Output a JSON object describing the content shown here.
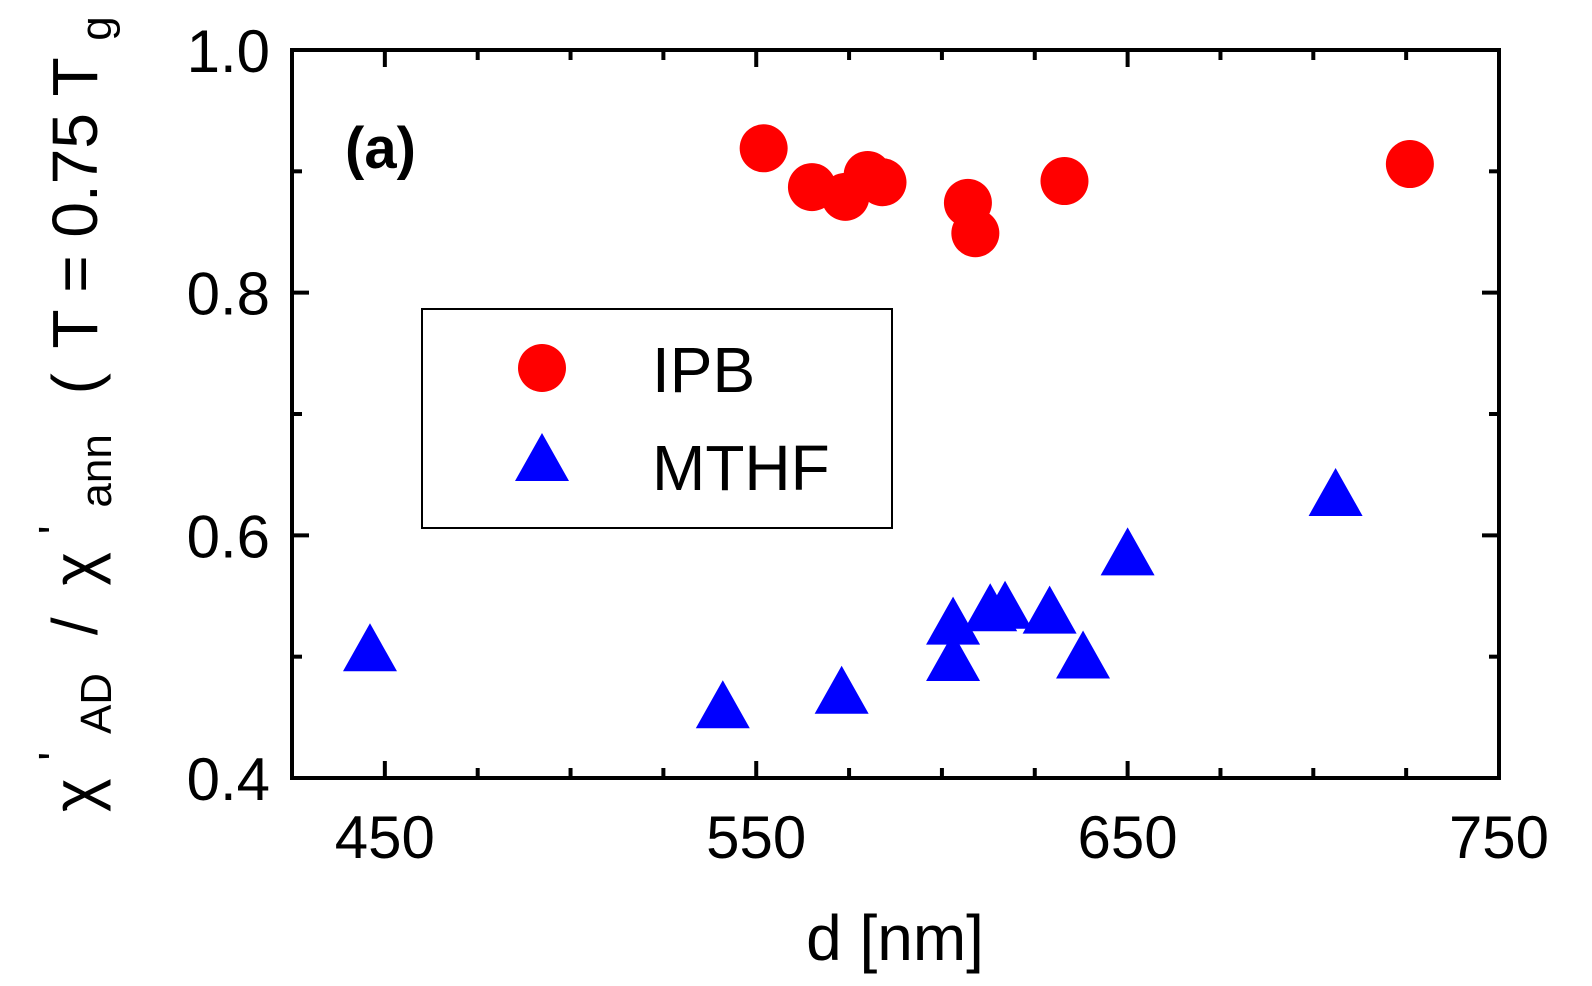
{
  "chart_data": {
    "type": "scatter",
    "panel_label": "(a)",
    "xlabel": "d [nm]",
    "ylabel": {
      "chi": "χ",
      "prime": "'",
      "sub_ad": "AD",
      "slash": "/",
      "sub_ann": "ann",
      "paren_open": "(",
      "t_eq": "T = 0.75 T",
      "sub_g": "g",
      "paren_close": ")"
    },
    "xlim": [
      425,
      750
    ],
    "ylim": [
      0.4,
      1.0
    ],
    "x_ticks": [
      450,
      550,
      650,
      750
    ],
    "x_tick_labels": [
      "450",
      "550",
      "650",
      "750"
    ],
    "x_minor_ticks": [
      475,
      500,
      525,
      575,
      600,
      625,
      675,
      700,
      725
    ],
    "y_ticks": [
      0.4,
      0.6,
      0.8,
      1.0
    ],
    "y_tick_labels": [
      "0.4",
      "0.6",
      "0.8",
      "1.0"
    ],
    "y_minor_ticks": [
      0.5,
      0.7,
      0.9
    ],
    "legend_placement": "center-left",
    "series": [
      {
        "name": "IPB",
        "marker": "circle",
        "color": "#ff0000",
        "points": [
          [
            552,
            0.919
          ],
          [
            565,
            0.887
          ],
          [
            574,
            0.879
          ],
          [
            580,
            0.897
          ],
          [
            584,
            0.891
          ],
          [
            607,
            0.874
          ],
          [
            609,
            0.849
          ],
          [
            633,
            0.892
          ],
          [
            726,
            0.906
          ]
        ]
      },
      {
        "name": "MTHF",
        "marker": "triangle",
        "color": "#0000ff",
        "points": [
          [
            446,
            0.503
          ],
          [
            541,
            0.456
          ],
          [
            573,
            0.468
          ],
          [
            603,
            0.525
          ],
          [
            603,
            0.495
          ],
          [
            613,
            0.536
          ],
          [
            617,
            0.538
          ],
          [
            629,
            0.534
          ],
          [
            638,
            0.497
          ],
          [
            650,
            0.582
          ],
          [
            706,
            0.631
          ]
        ]
      }
    ]
  }
}
